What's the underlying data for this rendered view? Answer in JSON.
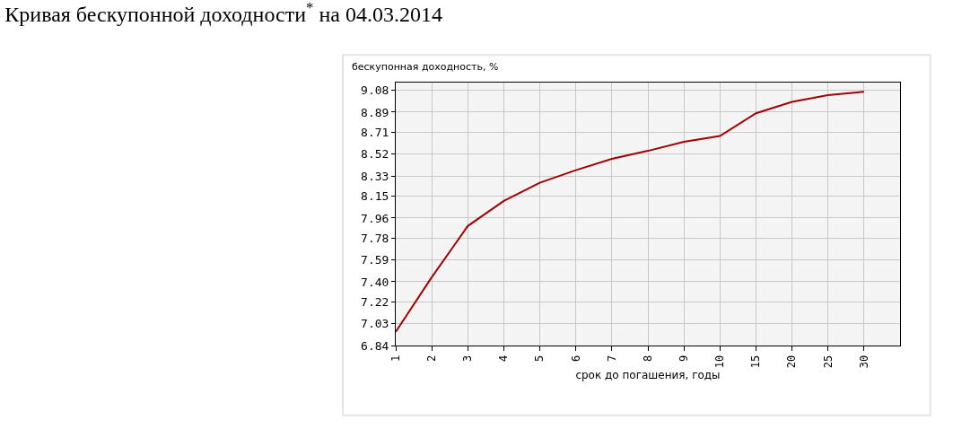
{
  "chart_data": {
    "type": "line",
    "title": "Кривая бескупонной доходности$^{*}$ на 04.03.2014",
    "ylabel": "бескупонная доходность, %",
    "xlabel": "срок до погашения, годы",
    "categories": [
      "1",
      "2",
      "3",
      "4",
      "5",
      "6",
      "7",
      "8",
      "9",
      "10",
      "15",
      "20",
      "25",
      "30"
    ],
    "series": [
      {
        "color": "#a00000",
        "values": [
          6.96,
          7.44,
          7.89,
          8.11,
          8.27,
          8.38,
          8.48,
          8.55,
          8.63,
          8.68,
          8.88,
          8.98,
          9.04,
          9.07
        ]
      }
    ],
    "ylim": [
      6.84,
      9.15
    ],
    "yticks": [
      {
        "value": 6.84,
        "label": "6.84"
      },
      {
        "value": 7.03,
        "label": "7.03"
      },
      {
        "value": 7.22,
        "label": "7.22"
      },
      {
        "value": 7.4,
        "label": "7.40"
      },
      {
        "value": 7.59,
        "label": "7.59"
      },
      {
        "value": 7.78,
        "label": "7.78"
      },
      {
        "value": 7.96,
        "label": "7.96"
      },
      {
        "value": 8.15,
        "label": "8.15"
      },
      {
        "value": 8.33,
        "label": "8.33"
      },
      {
        "value": 8.52,
        "label": "8.52"
      },
      {
        "value": 8.71,
        "label": "8.71"
      },
      {
        "value": 8.89,
        "label": "8.89"
      },
      {
        "value": 9.08,
        "label": "9.08"
      }
    ],
    "grid": true,
    "marker": "none",
    "line_style": "solid"
  }
}
